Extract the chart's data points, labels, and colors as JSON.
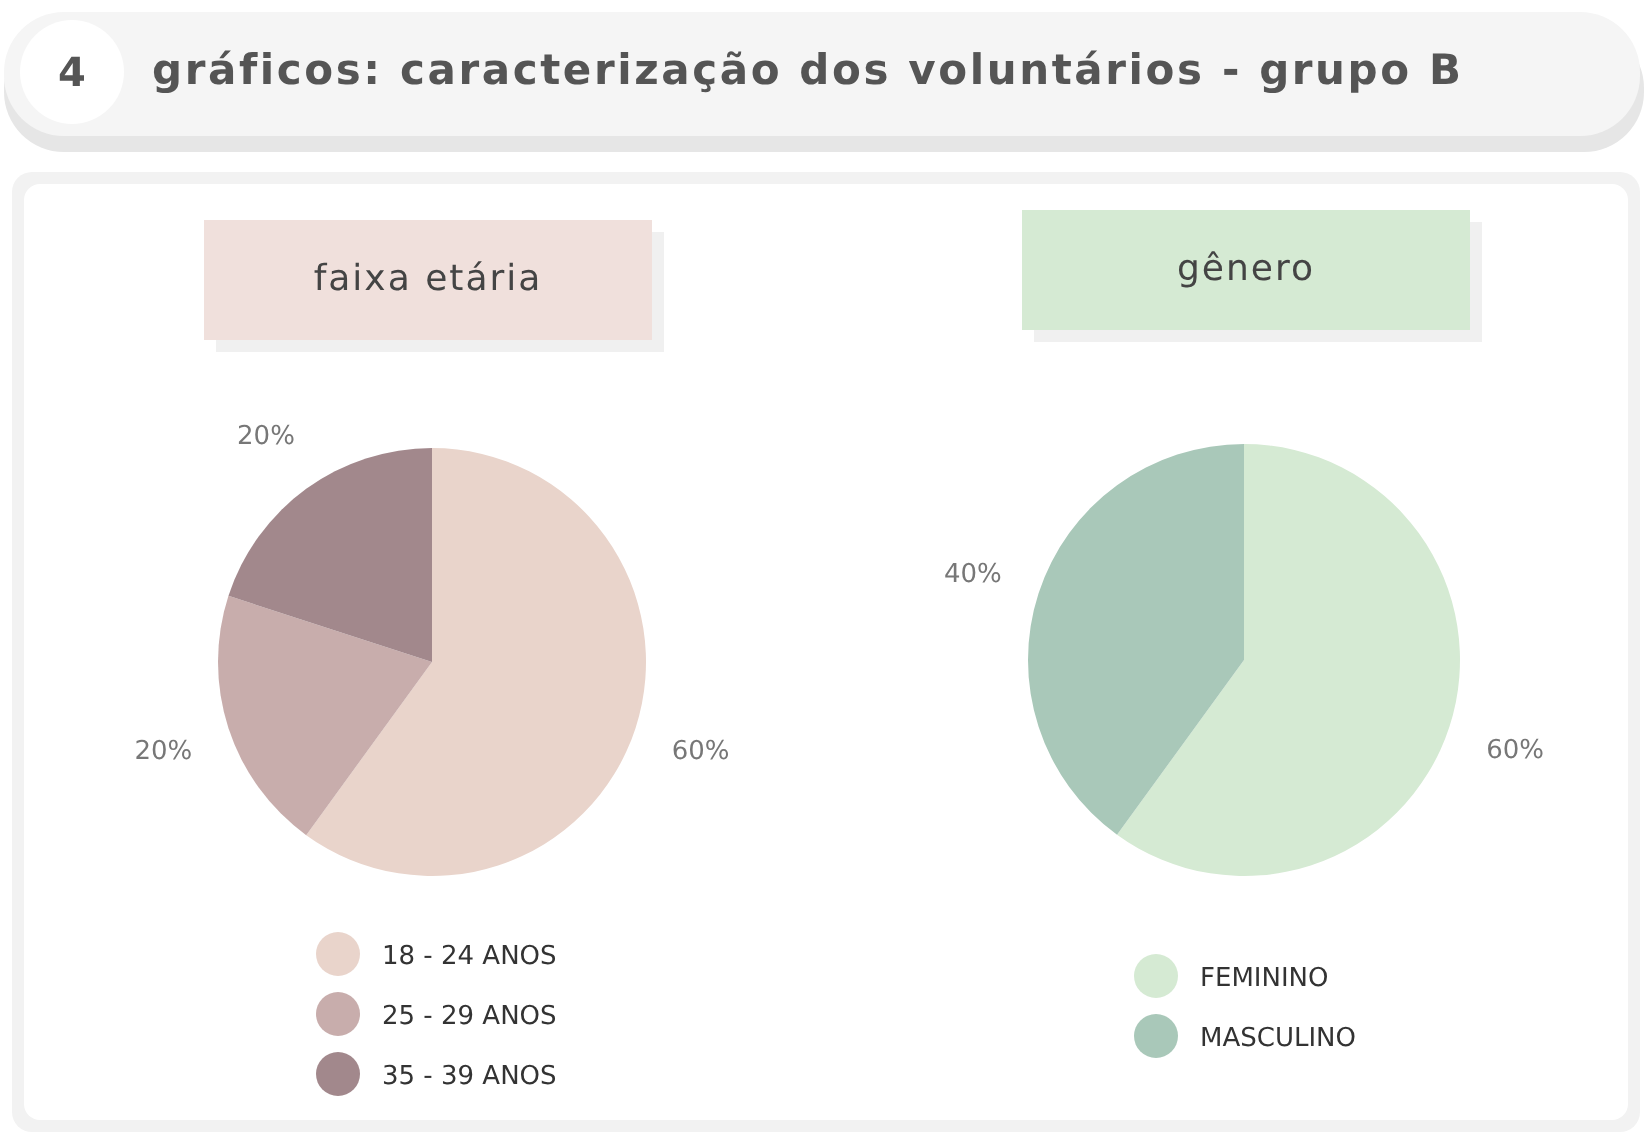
{
  "chart_data": [
    {
      "type": "pie",
      "title": "faixa etária",
      "annotations": [
        "4",
        "gráficos: caracterização dos voluntários - grupo B"
      ],
      "categories": [
        "18 - 24 ANOS",
        "25 - 29 ANOS",
        "35 - 39 ANOS"
      ],
      "values": [
        60,
        20,
        20
      ],
      "value_labels": [
        "60%",
        "20%",
        "20%"
      ],
      "colors": [
        "#e9d4cb",
        "#c8adac",
        "#a2888c"
      ],
      "legend": "bottom"
    },
    {
      "type": "pie",
      "title": "gênero",
      "categories": [
        "FEMININO",
        "MASCULINO"
      ],
      "values": [
        60,
        40
      ],
      "value_labels": [
        "60%",
        "40%"
      ],
      "colors": [
        "#d5ead3",
        "#a9c8b9"
      ],
      "legend": "bottom"
    }
  ]
}
